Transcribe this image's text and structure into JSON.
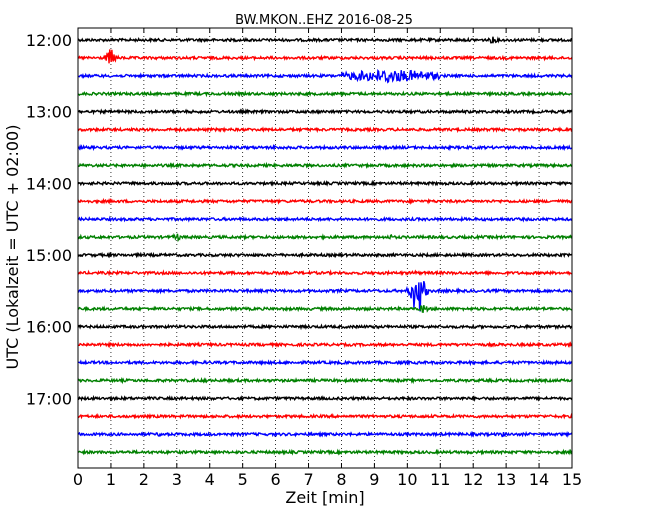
{
  "chart_data": {
    "type": "line",
    "title": "BW.MKON..EHZ 2016-08-25",
    "xlabel": "Zeit  [min]",
    "ylabel": "UTC (Lokalzeit = UTC + 02:00)",
    "xlim": [
      0,
      15
    ],
    "x_ticks": [
      "0",
      "1",
      "2",
      "3",
      "4",
      "5",
      "6",
      "7",
      "8",
      "9",
      "10",
      "11",
      "12",
      "13",
      "14",
      "15"
    ],
    "y_tick_labels": [
      "12:00",
      "13:00",
      "14:00",
      "15:00",
      "16:00",
      "17:00"
    ],
    "grid": true,
    "trace_interval_minutes": 15,
    "trace_colors": [
      "#000000",
      "#ff0000",
      "#0000ff",
      "#008000"
    ],
    "traces": [
      {
        "start": "12:00",
        "color": "#000000",
        "events": [
          {
            "t": 12.6,
            "amp": 5
          }
        ]
      },
      {
        "start": "12:15",
        "color": "#ff0000",
        "events": [
          {
            "t": 1.0,
            "amp": 12
          }
        ]
      },
      {
        "start": "12:30",
        "color": "#0000ff",
        "events": [
          {
            "t": 8.0,
            "amp": 6,
            "end": 11.0
          },
          {
            "t": 9.4,
            "amp": 11
          }
        ]
      },
      {
        "start": "12:45",
        "color": "#008000",
        "events": []
      },
      {
        "start": "13:00",
        "color": "#000000",
        "events": []
      },
      {
        "start": "13:15",
        "color": "#ff0000",
        "events": []
      },
      {
        "start": "13:30",
        "color": "#0000ff",
        "events": [
          {
            "t": 6.0,
            "amp": 3
          }
        ]
      },
      {
        "start": "13:45",
        "color": "#008000",
        "events": []
      },
      {
        "start": "14:00",
        "color": "#000000",
        "events": []
      },
      {
        "start": "14:15",
        "color": "#ff0000",
        "events": []
      },
      {
        "start": "14:30",
        "color": "#0000ff",
        "events": []
      },
      {
        "start": "14:45",
        "color": "#008000",
        "events": [
          {
            "t": 3.0,
            "amp": 5
          },
          {
            "t": 9.5,
            "amp": 3
          }
        ]
      },
      {
        "start": "15:00",
        "color": "#000000",
        "events": []
      },
      {
        "start": "15:15",
        "color": "#ff0000",
        "events": [
          {
            "t": 10.2,
            "amp": 3
          }
        ]
      },
      {
        "start": "15:30",
        "color": "#0000ff",
        "events": [
          {
            "t": 10.2,
            "amp": 18
          },
          {
            "t": 10.4,
            "amp": 25
          }
        ]
      },
      {
        "start": "15:45",
        "color": "#008000",
        "events": [
          {
            "t": 10.5,
            "amp": 6
          }
        ]
      },
      {
        "start": "16:00",
        "color": "#000000",
        "events": []
      },
      {
        "start": "16:15",
        "color": "#ff0000",
        "events": []
      },
      {
        "start": "16:30",
        "color": "#0000ff",
        "events": []
      },
      {
        "start": "16:45",
        "color": "#008000",
        "events": [
          {
            "t": 3.9,
            "amp": 3
          }
        ]
      },
      {
        "start": "17:00",
        "color": "#000000",
        "events": []
      },
      {
        "start": "17:15",
        "color": "#ff0000",
        "events": []
      },
      {
        "start": "17:30",
        "color": "#0000ff",
        "events": [
          {
            "t": 2.5,
            "amp": 3
          },
          {
            "t": 12.9,
            "amp": 3
          }
        ]
      },
      {
        "start": "17:45",
        "color": "#008000",
        "events": []
      }
    ]
  }
}
